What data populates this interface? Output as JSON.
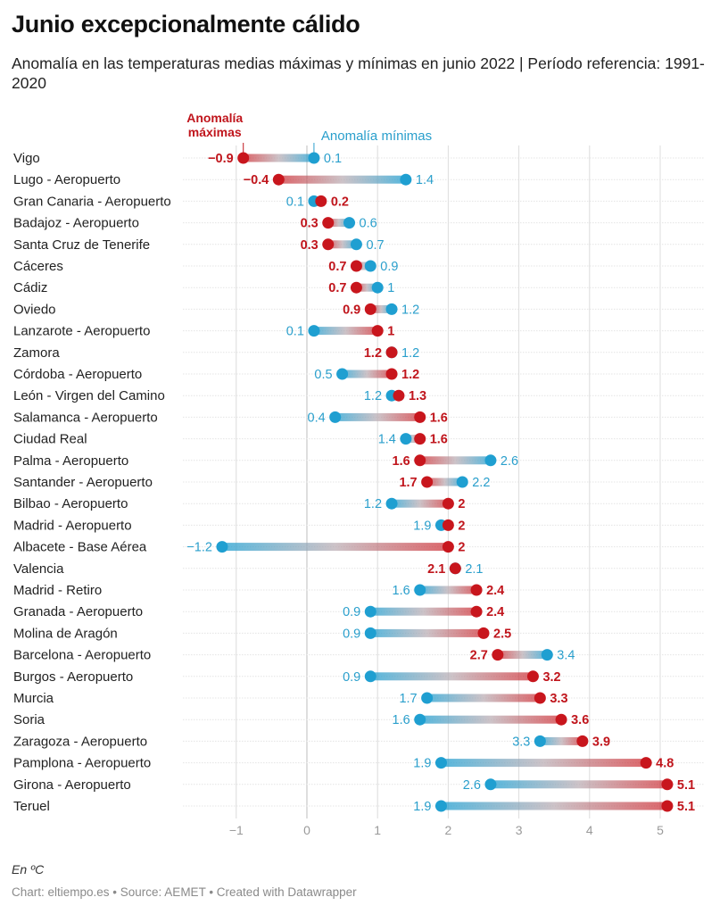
{
  "header": {
    "title": "Junio excepcionalmente cálido",
    "subtitle": "Anomalía en las temperaturas medias máximas y mínimas en junio 2022 | Período referencia: 1991-2020"
  },
  "footer": {
    "notes": "En ºC",
    "credits": "Chart: eltiempo.es • Source: AEMET • Created with Datawrapper"
  },
  "colors": {
    "max": "#c8161d",
    "min": "#1f9fd1",
    "max_text": "#c0151c",
    "min_text": "#2a9fcc",
    "grid": "#dcdcdc"
  },
  "chart_data": {
    "type": "range-dot",
    "title": "Junio excepcionalmente cálido",
    "subtitle": "Anomalía en las temperaturas medias máximas y mínimas en junio 2022 | Período referencia: 1991-2020",
    "xlabel": "",
    "unit": "ºC",
    "xlim": [
      -1.5,
      5.5
    ],
    "xticks": [
      -1,
      0,
      1,
      2,
      3,
      4,
      5
    ],
    "xtick_labels": [
      "−1",
      "0",
      "1",
      "2",
      "3",
      "4",
      "5"
    ],
    "grid": true,
    "annotations": {
      "max_label": [
        "Anomalía",
        "máximas"
      ],
      "min_label": "Anomalía mínimas"
    },
    "series": [
      {
        "name": "Anomalía máximas",
        "key": "max"
      },
      {
        "name": "Anomalía mínimas",
        "key": "min"
      }
    ],
    "categories": [
      "Vigo",
      "Lugo - Aeropuerto",
      "Gran Canaria - Aeropuerto",
      "Badajoz - Aeropuerto",
      "Santa Cruz de Tenerife",
      "Cáceres",
      "Cádiz",
      "Oviedo",
      "Lanzarote - Aeropuerto",
      "Zamora",
      "Córdoba - Aeropuerto",
      "León - Virgen del Camino",
      "Salamanca - Aeropuerto",
      "Ciudad Real",
      "Palma - Aeropuerto",
      "Santander - Aeropuerto",
      "Bilbao - Aeropuerto",
      "Madrid - Aeropuerto",
      "Albacete - Base Aérea",
      "Valencia",
      "Madrid - Retiro",
      "Granada - Aeropuerto",
      "Molina de Aragón",
      "Barcelona - Aeropuerto",
      "Burgos - Aeropuerto",
      "Murcia",
      "Soria",
      "Zaragoza - Aeropuerto",
      "Pamplona - Aeropuerto",
      "Girona - Aeropuerto",
      "Teruel"
    ],
    "max": [
      -0.9,
      -0.4,
      0.2,
      0.3,
      0.3,
      0.7,
      0.7,
      0.9,
      1,
      1.2,
      1.2,
      1.3,
      1.6,
      1.6,
      1.6,
      1.7,
      2,
      2,
      2,
      2.1,
      2.4,
      2.4,
      2.5,
      2.7,
      3.2,
      3.3,
      3.6,
      3.9,
      4.8,
      5.1,
      5.1
    ],
    "min": [
      0.1,
      1.4,
      0.1,
      0.6,
      0.7,
      0.9,
      1,
      1.2,
      0.1,
      1.2,
      0.5,
      1.2,
      0.4,
      1.4,
      2.6,
      2.2,
      1.2,
      1.9,
      -1.2,
      2.1,
      1.6,
      0.9,
      0.9,
      3.4,
      0.9,
      1.7,
      1.6,
      3.3,
      1.9,
      2.6,
      1.9
    ],
    "max_labels": [
      "−0.9",
      "−0.4",
      "0.2",
      "0.3",
      "0.3",
      "0.7",
      "0.7",
      "0.9",
      "1",
      "1.2",
      "1.2",
      "1.3",
      "1.6",
      "1.6",
      "1.6",
      "1.7",
      "2",
      "2",
      "2",
      "2.1",
      "2.4",
      "2.4",
      "2.5",
      "2.7",
      "3.2",
      "3.3",
      "3.6",
      "3.9",
      "4.8",
      "5.1",
      "5.1"
    ],
    "min_labels": [
      "0.1",
      "1.4",
      "0.1",
      "0.6",
      "0.7",
      "0.9",
      "1",
      "1.2",
      "0.1",
      "1.2",
      "0.5",
      "1.2",
      "0.4",
      "1.4",
      "2.6",
      "2.2",
      "1.2",
      "1.9",
      "−1.2",
      "2.1",
      "1.6",
      "0.9",
      "0.9",
      "3.4",
      "0.9",
      "1.7",
      "1.6",
      "3.3",
      "1.9",
      "2.6",
      "1.9"
    ]
  }
}
